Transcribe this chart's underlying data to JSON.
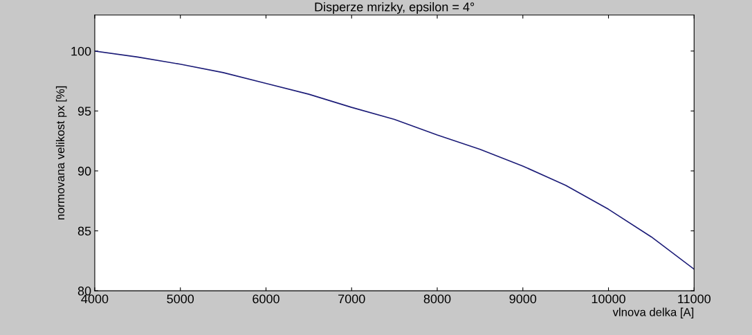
{
  "chart_data": {
    "type": "line",
    "title": "Disperze mrizky, epsilon = 4°",
    "xlabel": "vlnova delka [A]",
    "ylabel": "normovana velikost px [%]",
    "x": [
      4000,
      4500,
      5000,
      5500,
      6000,
      6500,
      7000,
      7500,
      8000,
      8500,
      9000,
      9500,
      10000,
      10500,
      11000
    ],
    "series": [
      {
        "color": "#1c1c78",
        "values": [
          100,
          99.5,
          98.9,
          98.2,
          97.3,
          96.4,
          95.3,
          94.3,
          93.0,
          91.8,
          90.4,
          88.8,
          86.8,
          84.5,
          81.8
        ]
      }
    ],
    "xlim": [
      4000,
      11000
    ],
    "xticks": [
      4000,
      5000,
      6000,
      7000,
      8000,
      9000,
      10000,
      11000
    ],
    "ylim": [
      80,
      103
    ],
    "yticks": [
      80,
      85,
      90,
      95,
      100
    ],
    "grid": false,
    "line_style": "solid",
    "marker": "none"
  }
}
